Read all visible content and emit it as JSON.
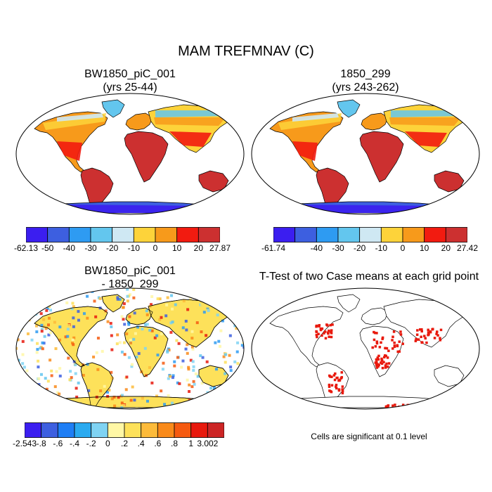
{
  "title": "MAM TREFMNAV (C)",
  "panels": [
    {
      "title_line1": "BW1850_piC_001",
      "title_line2": "(yrs 25-44)",
      "colorbar": {
        "colors": [
          "#3b1ef0",
          "#3d5fe0",
          "#2e9bf2",
          "#63c6ee",
          "#cfe8f3",
          "#fdd33a",
          "#f79a1b",
          "#f21b10",
          "#cc3030"
        ],
        "labels": [
          "-62.13",
          "-50",
          "-40",
          "-30",
          "-20",
          "-10",
          "0",
          "10",
          "20",
          "27.87"
        ]
      }
    },
    {
      "title_line1": "1850_299",
      "title_line2": "(yrs 243-262)",
      "colorbar": {
        "colors": [
          "#3b1ef0",
          "#3d5fe0",
          "#2e9bf2",
          "#63c6ee",
          "#cfe8f3",
          "#fdd33a",
          "#f79a1b",
          "#f21b10",
          "#cc3030"
        ],
        "labels": [
          "-61.74",
          "",
          "-40",
          "-30",
          "-20",
          "-10",
          "0",
          "10",
          "20",
          "27.42"
        ]
      }
    },
    {
      "title_line1": "BW1850_piC_001",
      "title_line2": "- 1850_299",
      "colorbar": {
        "colors": [
          "#3b1ef0",
          "#3d5fe0",
          "#1e7ef5",
          "#2aaaf0",
          "#7fd3f3",
          "#fff7a5",
          "#fde15a",
          "#fdbb3a",
          "#f98a1a",
          "#f55a10",
          "#e8190d",
          "#cc2525"
        ],
        "labels": [
          "-2.543",
          "-.8",
          "-.6",
          "-.4",
          "-.2",
          "0",
          ".2",
          ".4",
          ".6",
          ".8",
          "1",
          "3.002"
        ]
      }
    },
    {
      "title_line1": "T-Test of two Case means at each grid point",
      "note": "Cells are significant at 0.1 level"
    }
  ]
}
